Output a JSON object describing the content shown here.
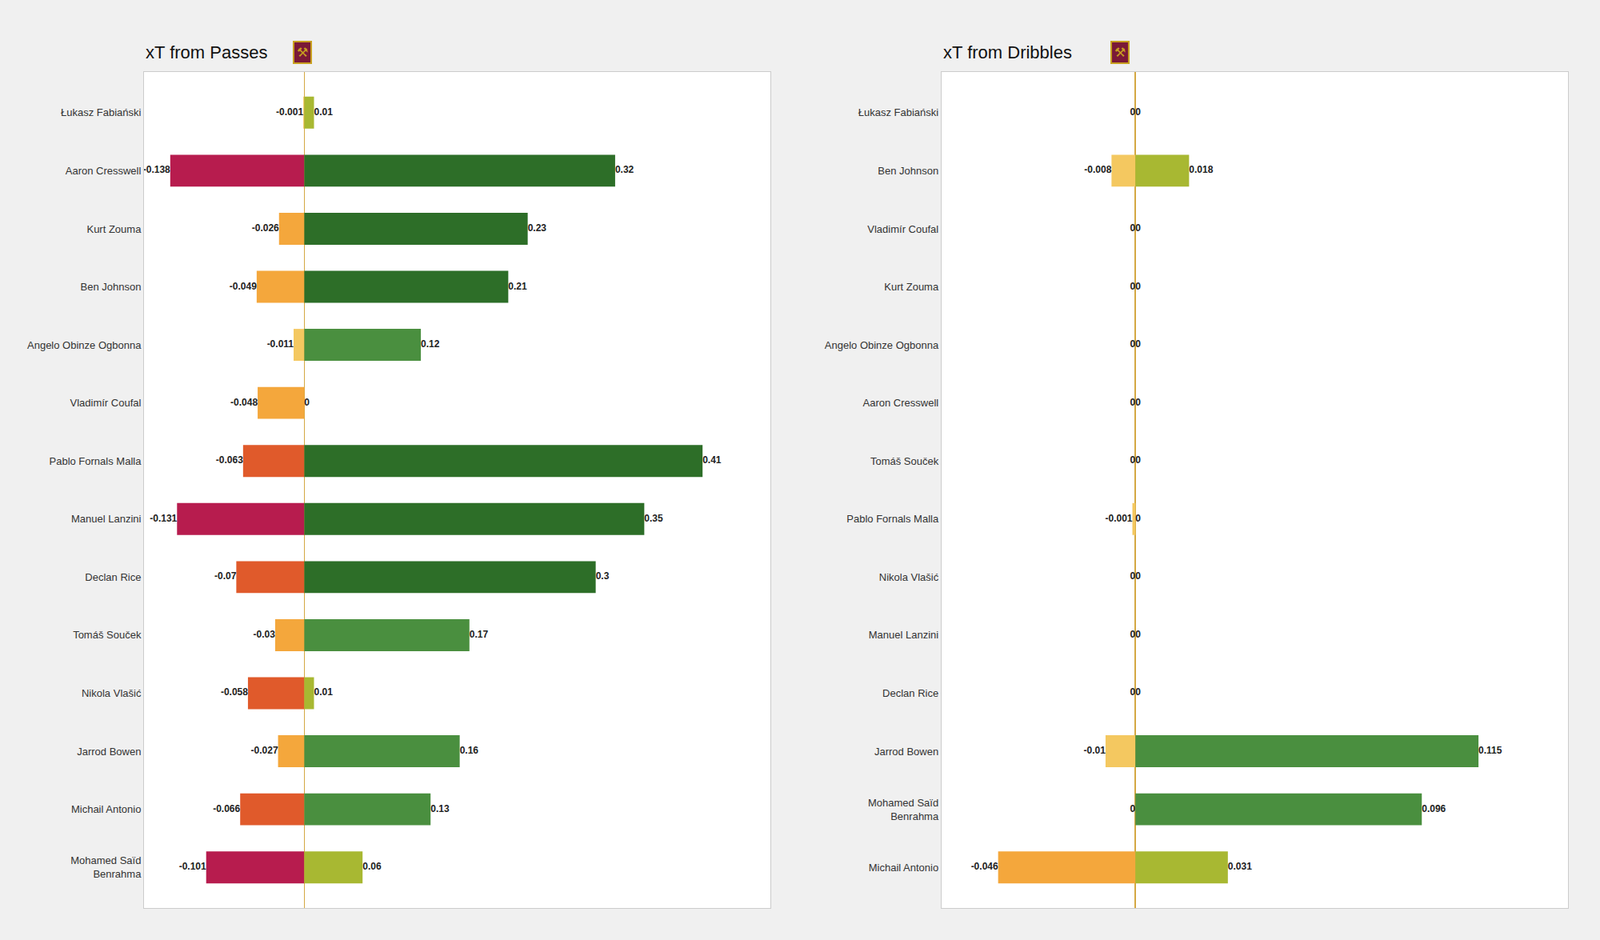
{
  "chart_data": [
    {
      "type": "bar",
      "title": "xT from Passes",
      "orientation": "horizontal",
      "stacked": true,
      "categories": [
        "Łukasz Fabiański",
        "Aaron Cresswell",
        "Kurt Zouma",
        "Ben Johnson",
        "Angelo Obinze Ogbonna",
        "Vladimír Coufal",
        "Pablo Fornals Malla",
        "Manuel Lanzini",
        "Declan Rice",
        "Tomáš Souček",
        "Nikola Vlašić",
        "Jarrod Bowen",
        "Michail Antonio",
        "Mohamed Saïd\nBenrahma"
      ],
      "series": [
        {
          "values": [
            -0.001,
            -0.138,
            -0.026,
            -0.049,
            -0.011,
            -0.048,
            -0.063,
            -0.131,
            -0.07,
            -0.03,
            -0.058,
            -0.027,
            -0.066,
            -0.101
          ],
          "colors": [
            "#f4c860",
            "#b71c4e",
            "#f4a73c",
            "#f4a73c",
            "#f4c860",
            "#f4a73c",
            "#e05a2b",
            "#b71c4e",
            "#e05a2b",
            "#f4a73c",
            "#e05a2b",
            "#f4a73c",
            "#e05a2b",
            "#b71c4e"
          ]
        },
        {
          "values": [
            0.01,
            0.32,
            0.23,
            0.21,
            0.12,
            0,
            0.41,
            0.35,
            0.3,
            0.17,
            0.01,
            0.16,
            0.13,
            0.06
          ],
          "colors": [
            "#a8b832",
            "#2d6e28",
            "#2d6e28",
            "#2d6e28",
            "#4a8f3f",
            "#d4c840",
            "#2d6e28",
            "#2d6e28",
            "#2d6e28",
            "#4a8f3f",
            "#a8b832",
            "#4a8f3f",
            "#4a8f3f",
            "#a8b832"
          ]
        }
      ],
      "xlim": [
        -0.165,
        0.48
      ],
      "xticks": [],
      "grid": false,
      "data_labels": true,
      "tick_labels": "y",
      "annotations": [
        {
          "text": "⚒"
        }
      ]
    },
    {
      "type": "bar",
      "title": "xT from Dribbles",
      "orientation": "horizontal",
      "stacked": true,
      "categories": [
        "Łukasz Fabiański",
        "Ben Johnson",
        "Vladimír Coufal",
        "Kurt Zouma",
        "Angelo Obinze Ogbonna",
        "Aaron Cresswell",
        "Tomáš Souček",
        "Pablo Fornals Malla",
        "Nikola Vlašić",
        "Manuel Lanzini",
        "Declan Rice",
        "Jarrod Bowen",
        "Mohamed Saïd\nBenrahma",
        "Michail Antonio"
      ],
      "series": [
        {
          "values": [
            0,
            -0.008,
            0,
            0,
            0,
            0,
            0,
            -0.001,
            0,
            0,
            0,
            -0.01,
            0,
            -0.046
          ],
          "colors": [
            "#f4c860",
            "#f4c860",
            "#f4c860",
            "#f4c860",
            "#f4c860",
            "#f4c860",
            "#f4c860",
            "#f4c860",
            "#f4c860",
            "#f4c860",
            "#f4c860",
            "#f4c860",
            "#f4c860",
            "#f4a73c"
          ]
        },
        {
          "values": [
            0,
            0.018,
            0,
            0,
            0,
            0,
            0,
            0,
            0,
            0,
            0,
            0.115,
            0.096,
            0.031
          ],
          "colors": [
            "#d4c840",
            "#a8b832",
            "#d4c840",
            "#d4c840",
            "#d4c840",
            "#d4c840",
            "#d4c840",
            "#d4c840",
            "#d4c840",
            "#d4c840",
            "#d4c840",
            "#4a8f3f",
            "#4a8f3f",
            "#a8b832"
          ]
        }
      ],
      "xlim": [
        -0.065,
        0.145
      ],
      "xticks": [],
      "grid": false,
      "data_labels": true,
      "tick_labels": "y",
      "annotations": [
        {
          "text": "⚒"
        }
      ]
    }
  ]
}
